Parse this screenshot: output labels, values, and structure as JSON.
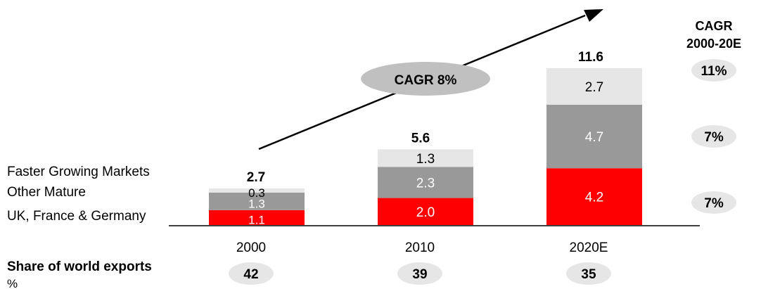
{
  "colors": {
    "uk_france_germany": "#ff0000",
    "other_mature": "#999999",
    "faster_growing": "#e6e6e6",
    "pill": "#e6e6e6",
    "cagr_ellipse": "#c0c0c0"
  },
  "cagr_arrow_label": "CAGR 8%",
  "cagr_header": {
    "line1": "CAGR",
    "line2": "2000-20E"
  },
  "share_label": "Share of world exports",
  "share_unit": "%",
  "chart_data": {
    "type": "bar",
    "stacked": true,
    "categories": [
      "2000",
      "2010",
      "2020E"
    ],
    "series": [
      {
        "name": "UK, France & Germany",
        "values": [
          1.1,
          2.0,
          4.2
        ],
        "value_labels": [
          "1.1",
          "2.0",
          "4.2"
        ],
        "cagr": "7%"
      },
      {
        "name": "Other Mature",
        "values": [
          1.3,
          2.3,
          4.7
        ],
        "value_labels": [
          "1.3",
          "2.3",
          "4.7"
        ],
        "cagr": "7%"
      },
      {
        "name": "Faster Growing Markets",
        "values": [
          0.3,
          1.3,
          2.7
        ],
        "value_labels": [
          "0.3",
          "1.3",
          "2.7"
        ],
        "cagr": "11%"
      }
    ],
    "totals": [
      "2.7",
      "5.6",
      "11.6"
    ],
    "share_of_world_exports": [
      "42",
      "39",
      "35"
    ],
    "ylim": [
      0,
      11.6
    ],
    "legend": "left"
  }
}
